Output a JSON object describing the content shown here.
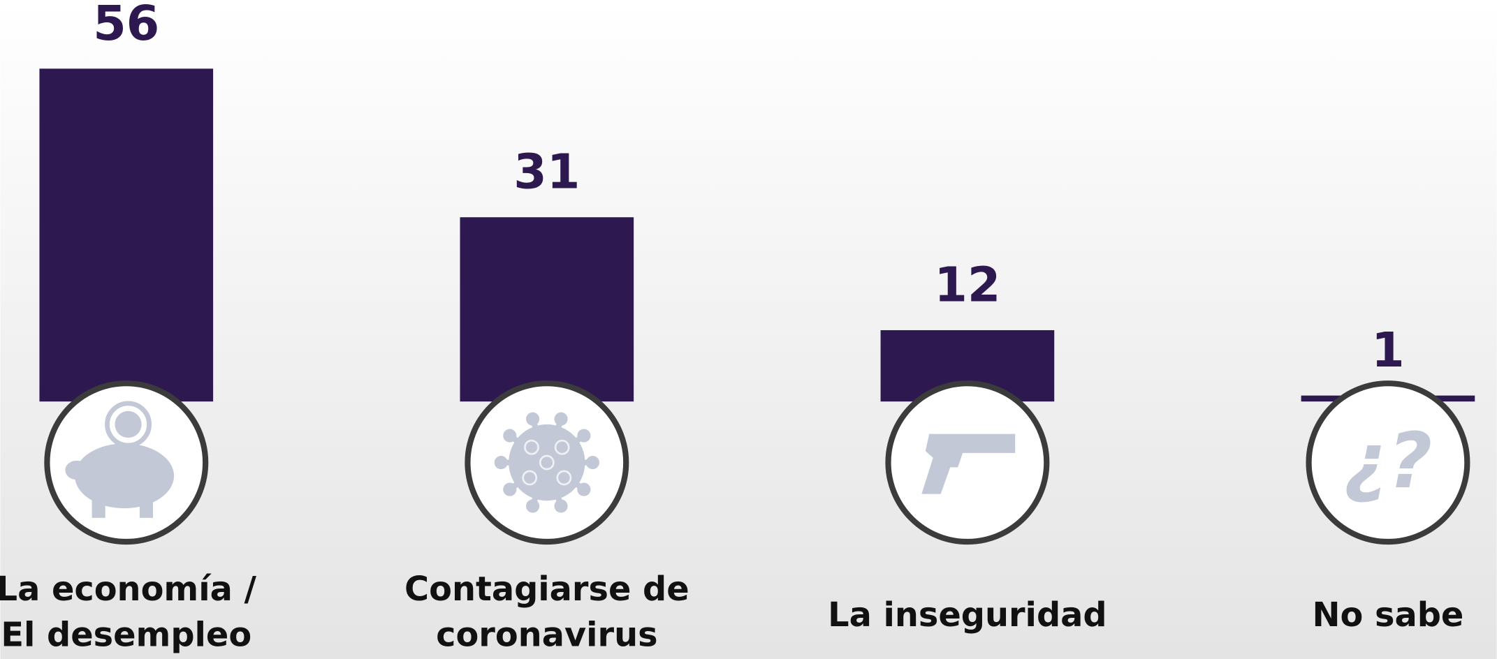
{
  "chart_data": {
    "type": "bar",
    "categories": [
      [
        "La economía /",
        "El desempleo"
      ],
      [
        "Contagiarse de",
        "coronavirus"
      ],
      [
        "La inseguridad"
      ],
      [
        "No sabe"
      ]
    ],
    "values": [
      56,
      31,
      12,
      1
    ],
    "color": "#2d1850",
    "annotations": [
      "¿?"
    ]
  }
}
